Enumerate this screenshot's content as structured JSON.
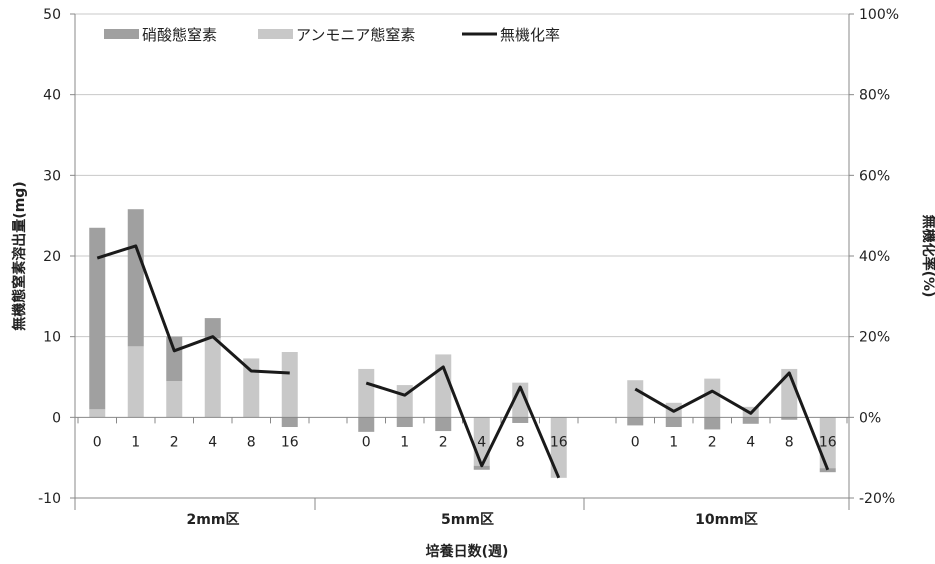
{
  "chart_data": {
    "type": "bar",
    "stacked": true,
    "groups": [
      "2mm区",
      "5mm区",
      "10mm区"
    ],
    "categories": [
      "0",
      "1",
      "2",
      "4",
      "8",
      "16"
    ],
    "xlabel": "培養日数(週)",
    "ylabel": "無機態窒素溶出量(mg)",
    "y2label": "無機化率(%)",
    "ylim": [
      -10,
      50
    ],
    "y2lim": [
      -20,
      100
    ],
    "y_ticks": [
      "-10",
      "0",
      "10",
      "20",
      "30",
      "40",
      "50"
    ],
    "y2_ticks": [
      "-20%",
      "0%",
      "20%",
      "40%",
      "60%",
      "80%",
      "100%"
    ],
    "grid": true,
    "legend_position": "top-left",
    "series": [
      {
        "name": "硝酸態窒素",
        "type": "bar",
        "color": "#a0a0a0",
        "values": [
          [
            22.5,
            17.0,
            5.5,
            2.5,
            0.0,
            -1.2
          ],
          [
            -1.8,
            -1.2,
            -1.7,
            -0.5,
            -0.7,
            0.0
          ],
          [
            -1.0,
            -1.2,
            -1.5,
            -0.8,
            -0.3,
            -0.5
          ]
        ]
      },
      {
        "name": "アンモニア態窒素",
        "type": "bar",
        "color": "#c8c8c8",
        "values": [
          [
            1.0,
            8.8,
            4.5,
            9.8,
            7.3,
            8.1
          ],
          [
            6.0,
            4.0,
            7.8,
            -6.0,
            4.3,
            -7.5
          ],
          [
            4.6,
            1.8,
            4.8,
            1.3,
            6.0,
            -6.3
          ]
        ]
      },
      {
        "name": "無機化率",
        "type": "line",
        "axis": "right",
        "color": "#1a1a1a",
        "values": [
          [
            39.5,
            42.5,
            16.5,
            20.0,
            11.5,
            11.0
          ],
          [
            8.5,
            5.5,
            12.5,
            -12.0,
            7.5,
            -15.0
          ],
          [
            7.0,
            1.5,
            6.5,
            1.0,
            11.0,
            -13.0
          ]
        ]
      }
    ]
  }
}
